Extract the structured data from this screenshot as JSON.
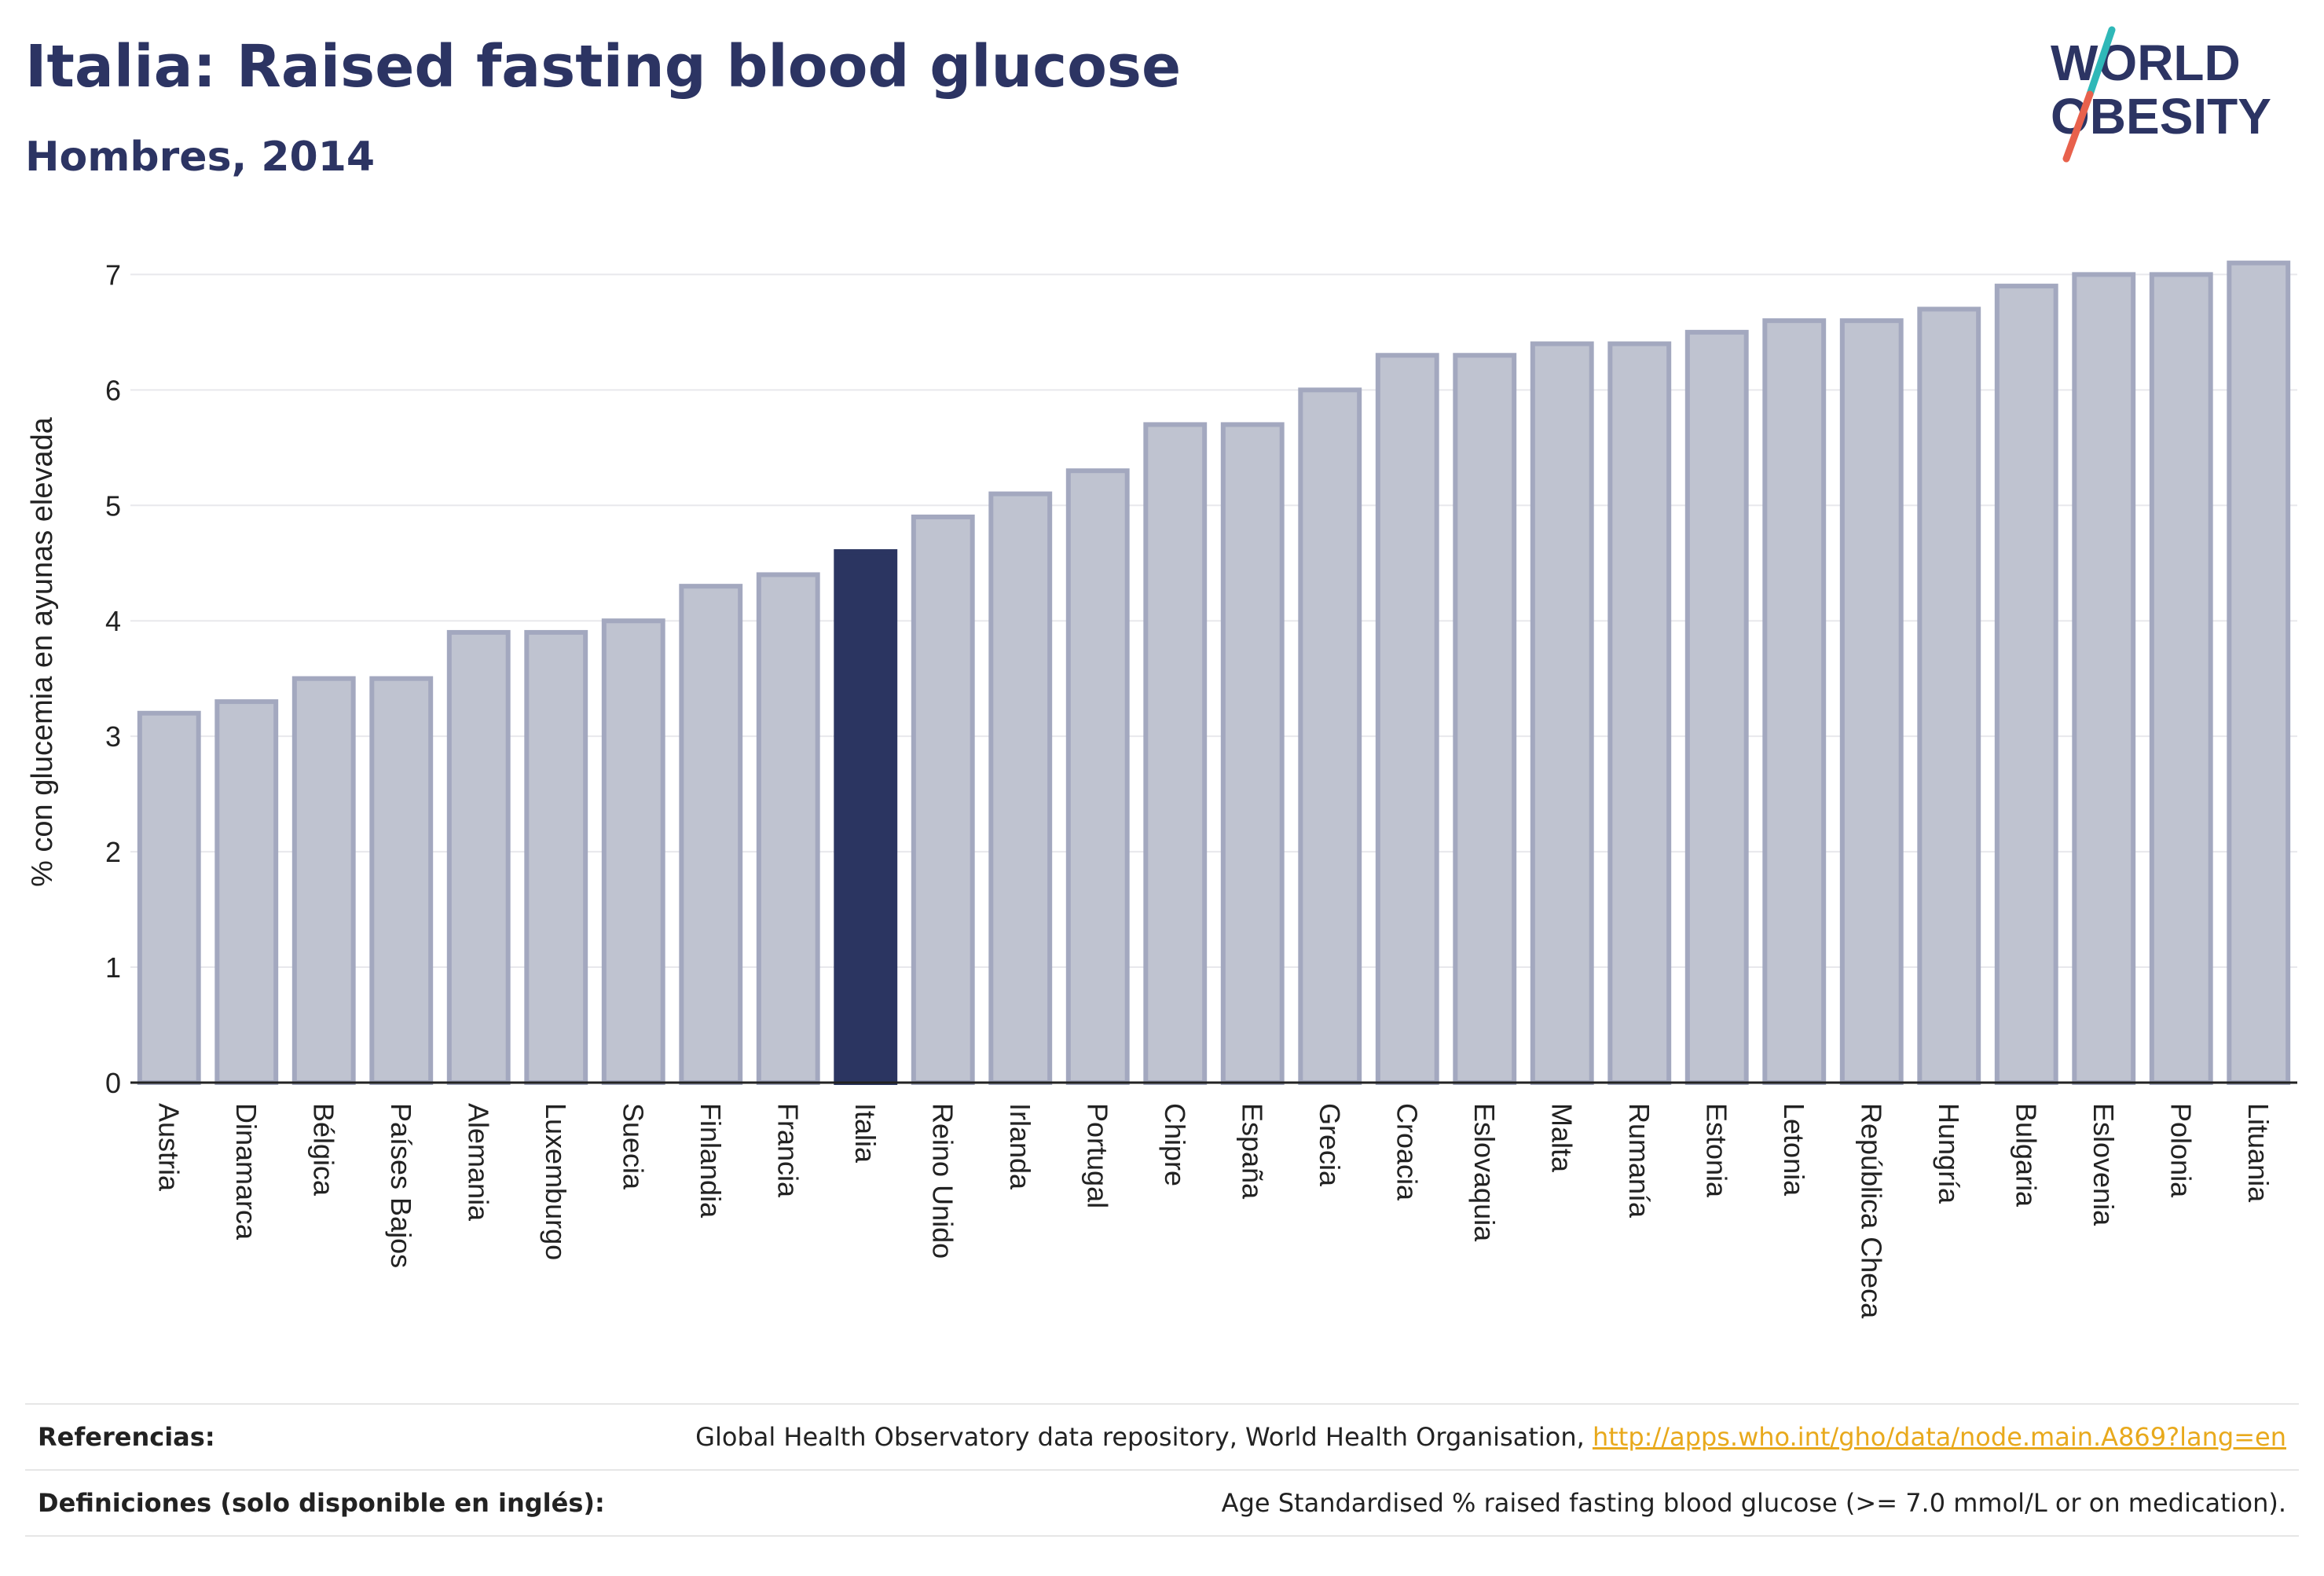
{
  "header": {
    "title": "Italia: Raised fasting blood glucose",
    "subtitle": "Hombres, 2014"
  },
  "logo": {
    "line1": "WORLD",
    "line2": "OBESITY"
  },
  "colors": {
    "title": "#2c3463",
    "bar_default": "#bfc3d0",
    "bar_default_stroke": "#a3a8bf",
    "bar_highlight": "#2b3561",
    "axis": "#222222",
    "grid": "#e8e8ec",
    "logo_slash_teal": "#2fb8b8",
    "logo_slash_red": "#e8614c",
    "link": "#e8a91c"
  },
  "chart_data": {
    "type": "bar",
    "title": "",
    "xlabel": "",
    "ylabel": "% con glucemia en ayunas elevada",
    "ylim": [
      0,
      7.2
    ],
    "yticks": [
      0,
      1,
      2,
      3,
      4,
      5,
      6,
      7
    ],
    "grid": true,
    "highlight": "Italia",
    "categories": [
      "Austria",
      "Dinamarca",
      "Bélgica",
      "Países Bajos",
      "Alemania",
      "Luxemburgo",
      "Suecia",
      "Finlandia",
      "Francia",
      "Italia",
      "Reino Unido",
      "Irlanda",
      "Portugal",
      "Chipre",
      "España",
      "Grecia",
      "Croacia",
      "Eslovaquia",
      "Malta",
      "Rumanía",
      "Estonia",
      "Letonia",
      "República Checa",
      "Hungría",
      "Bulgaria",
      "Eslovenia",
      "Polonia",
      "Lituania"
    ],
    "values": [
      3.2,
      3.3,
      3.5,
      3.5,
      3.9,
      3.9,
      4.0,
      4.3,
      4.4,
      4.6,
      4.9,
      5.1,
      5.3,
      5.7,
      5.7,
      6.0,
      6.3,
      6.3,
      6.4,
      6.4,
      6.5,
      6.6,
      6.6,
      6.7,
      6.9,
      7.0,
      7.0,
      7.1
    ]
  },
  "footer": {
    "references_label": "Referencias:",
    "references_text": "Global Health Observatory data repository, World Health Organisation, ",
    "references_link": "http://apps.who.int/gho/data/node.main.A869?lang=en",
    "definitions_label": "Definiciones (solo disponible en inglés):",
    "definitions_text": "Age Standardised % raised fasting blood glucose (>= 7.0 mmol/L or on medication)."
  }
}
